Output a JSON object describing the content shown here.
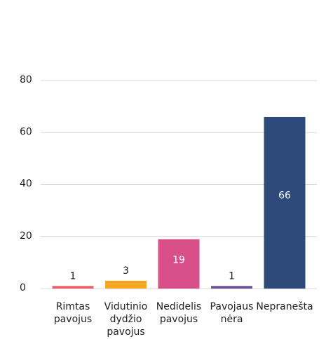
{
  "chart_data": {
    "type": "bar",
    "categories": [
      [
        "Rimtas",
        "pavojus"
      ],
      [
        "Vidutinio",
        "dydžio",
        "pavojus"
      ],
      [
        "Nedidelis",
        "pavojus"
      ],
      [
        "Pavojaus",
        "nėra"
      ],
      [
        "Nepranešta"
      ]
    ],
    "values": [
      1,
      3,
      19,
      1,
      66
    ],
    "colors": [
      "#e8606a",
      "#f5a623",
      "#d94f8a",
      "#6b5195",
      "#2e4a7a"
    ],
    "ylim": [
      0,
      80
    ],
    "yticks": [
      0,
      20,
      40,
      60,
      80
    ],
    "grid": true
  }
}
